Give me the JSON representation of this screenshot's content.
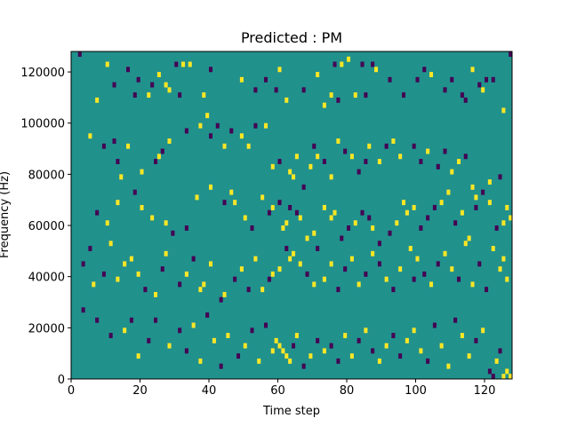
{
  "chart_data": {
    "type": "heatmap",
    "title": "Predicted : PM",
    "xlabel": "Time step",
    "ylabel": "Frequency (Hz)",
    "xlim": [
      0,
      128
    ],
    "ylim": [
      0,
      128000
    ],
    "x_ticks": [
      0,
      20,
      40,
      60,
      80,
      100,
      120
    ],
    "y_ticks": [
      0,
      20000,
      40000,
      60000,
      80000,
      100000,
      120000
    ],
    "grid": false,
    "legend": "none",
    "n_time_bins": 128,
    "n_freq_bins": 64,
    "freq_bin_width_hz": 2000,
    "value_levels": {
      "low": -1,
      "mid": 0,
      "high": 1
    },
    "colors": {
      "low": "#440154",
      "mid": "#21918c",
      "high": "#fde725"
    },
    "background_value": 0,
    "cells": [
      [
        2,
        63,
        -1
      ],
      [
        10,
        61,
        1
      ],
      [
        16,
        60,
        -1
      ],
      [
        19,
        58,
        -1
      ],
      [
        23,
        57,
        -1
      ],
      [
        25,
        59,
        1
      ],
      [
        27,
        57,
        1
      ],
      [
        30,
        61,
        -1
      ],
      [
        32,
        61,
        1
      ],
      [
        34,
        61,
        1
      ],
      [
        40,
        60,
        -1
      ],
      [
        49,
        58,
        1
      ],
      [
        56,
        58,
        -1
      ],
      [
        60,
        60,
        1
      ],
      [
        71,
        59,
        1
      ],
      [
        73,
        53,
        1
      ],
      [
        76,
        61,
        -1
      ],
      [
        78,
        61,
        1
      ],
      [
        80,
        62,
        1
      ],
      [
        84,
        61,
        -1
      ],
      [
        87,
        61,
        -1
      ],
      [
        88,
        60,
        1
      ],
      [
        92,
        58,
        -1
      ],
      [
        102,
        60,
        -1
      ],
      [
        116,
        60,
        1
      ],
      [
        120,
        58,
        -1
      ],
      [
        122,
        58,
        -1
      ],
      [
        125,
        52,
        1
      ],
      [
        127,
        63,
        -1
      ],
      [
        7,
        54,
        1
      ],
      [
        12,
        57,
        -1
      ],
      [
        18,
        55,
        -1
      ],
      [
        22,
        55,
        1
      ],
      [
        28,
        56,
        1
      ],
      [
        31,
        55,
        -1
      ],
      [
        38,
        55,
        1
      ],
      [
        53,
        56,
        -1
      ],
      [
        59,
        56,
        -1
      ],
      [
        62,
        54,
        1
      ],
      [
        67,
        56,
        -1
      ],
      [
        75,
        55,
        1
      ],
      [
        77,
        54,
        -1
      ],
      [
        82,
        55,
        1
      ],
      [
        85,
        55,
        -1
      ],
      [
        96,
        55,
        -1
      ],
      [
        100,
        58,
        -1
      ],
      [
        104,
        59,
        1
      ],
      [
        108,
        56,
        -1
      ],
      [
        110,
        58,
        -1
      ],
      [
        113,
        55,
        -1
      ],
      [
        114,
        54,
        -1
      ],
      [
        118,
        57,
        -1
      ],
      [
        119,
        56,
        1
      ],
      [
        5,
        47,
        1
      ],
      [
        9,
        45,
        -1
      ],
      [
        12,
        46,
        -1
      ],
      [
        13,
        42,
        -1
      ],
      [
        14,
        39,
        1
      ],
      [
        16,
        45,
        1
      ],
      [
        20,
        40,
        1
      ],
      [
        24,
        42,
        -1
      ],
      [
        25,
        43,
        1
      ],
      [
        26,
        44,
        -1
      ],
      [
        28,
        46,
        1
      ],
      [
        33,
        48,
        -1
      ],
      [
        37,
        49,
        1
      ],
      [
        39,
        51,
        1
      ],
      [
        40,
        47,
        -1
      ],
      [
        42,
        49,
        -1
      ],
      [
        44,
        45,
        1
      ],
      [
        46,
        48,
        -1
      ],
      [
        49,
        47,
        1
      ],
      [
        51,
        45,
        1
      ],
      [
        53,
        49,
        -1
      ],
      [
        56,
        49,
        1
      ],
      [
        58,
        41,
        1
      ],
      [
        60,
        42,
        -1
      ],
      [
        63,
        40,
        1
      ],
      [
        64,
        39,
        1
      ],
      [
        65,
        43,
        1
      ],
      [
        67,
        37,
        -1
      ],
      [
        69,
        41,
        1
      ],
      [
        70,
        45,
        -1
      ],
      [
        71,
        43,
        1
      ],
      [
        73,
        42,
        -1
      ],
      [
        75,
        39,
        1
      ],
      [
        77,
        46,
        1
      ],
      [
        79,
        44,
        -1
      ],
      [
        81,
        43,
        1
      ],
      [
        83,
        40,
        -1
      ],
      [
        85,
        42,
        -1
      ],
      [
        86,
        45,
        1
      ],
      [
        89,
        42,
        1
      ],
      [
        91,
        45,
        -1
      ],
      [
        93,
        46,
        1
      ],
      [
        95,
        43,
        1
      ],
      [
        99,
        45,
        -1
      ],
      [
        101,
        42,
        -1
      ],
      [
        103,
        44,
        1
      ],
      [
        106,
        41,
        -1
      ],
      [
        108,
        44,
        -1
      ],
      [
        110,
        40,
        1
      ],
      [
        112,
        42,
        1
      ],
      [
        114,
        43,
        -1
      ],
      [
        116,
        37,
        1
      ],
      [
        117,
        33,
        -1
      ],
      [
        121,
        38,
        1
      ],
      [
        124,
        39,
        -1
      ],
      [
        7,
        32,
        -1
      ],
      [
        10,
        30,
        1
      ],
      [
        13,
        34,
        1
      ],
      [
        18,
        36,
        -1
      ],
      [
        20,
        33,
        1
      ],
      [
        23,
        31,
        1
      ],
      [
        27,
        30,
        1
      ],
      [
        29,
        28,
        -1
      ],
      [
        33,
        29,
        -1
      ],
      [
        36,
        35,
        1
      ],
      [
        40,
        37,
        1
      ],
      [
        44,
        34,
        -1
      ],
      [
        46,
        36,
        1
      ],
      [
        47,
        34,
        1
      ],
      [
        50,
        31,
        1
      ],
      [
        52,
        29,
        -1
      ],
      [
        55,
        35,
        1
      ],
      [
        57,
        32,
        -1
      ],
      [
        58,
        33,
        1
      ],
      [
        60,
        34,
        -1
      ],
      [
        61,
        29,
        1
      ],
      [
        62,
        30,
        1
      ],
      [
        63,
        33,
        -1
      ],
      [
        65,
        32,
        -1
      ],
      [
        66,
        31,
        1
      ],
      [
        68,
        27,
        1
      ],
      [
        70,
        28,
        1
      ],
      [
        73,
        33,
        1
      ],
      [
        75,
        31,
        1
      ],
      [
        76,
        32,
        1
      ],
      [
        78,
        27,
        -1
      ],
      [
        80,
        29,
        -1
      ],
      [
        82,
        30,
        1
      ],
      [
        84,
        32,
        -1
      ],
      [
        86,
        31,
        -1
      ],
      [
        87,
        29,
        1
      ],
      [
        89,
        26,
        -1
      ],
      [
        92,
        28,
        -1
      ],
      [
        94,
        30,
        1
      ],
      [
        96,
        34,
        1
      ],
      [
        97,
        32,
        1
      ],
      [
        99,
        33,
        1
      ],
      [
        101,
        29,
        -1
      ],
      [
        103,
        31,
        -1
      ],
      [
        105,
        33,
        -1
      ],
      [
        107,
        34,
        1
      ],
      [
        109,
        36,
        1
      ],
      [
        111,
        30,
        -1
      ],
      [
        113,
        32,
        1
      ],
      [
        115,
        27,
        1
      ],
      [
        117,
        35,
        1
      ],
      [
        119,
        36,
        -1
      ],
      [
        121,
        34,
        1
      ],
      [
        123,
        29,
        -1
      ],
      [
        125,
        30,
        1
      ],
      [
        126,
        33,
        1
      ],
      [
        127,
        31,
        1
      ],
      [
        3,
        22,
        -1
      ],
      [
        5,
        25,
        -1
      ],
      [
        6,
        18,
        1
      ],
      [
        9,
        20,
        -1
      ],
      [
        11,
        26,
        1
      ],
      [
        13,
        19,
        1
      ],
      [
        15,
        22,
        1
      ],
      [
        17,
        23,
        1
      ],
      [
        19,
        20,
        1
      ],
      [
        21,
        17,
        -1
      ],
      [
        24,
        16,
        1
      ],
      [
        26,
        21,
        -1
      ],
      [
        27,
        24,
        1
      ],
      [
        31,
        18,
        -1
      ],
      [
        33,
        20,
        1
      ],
      [
        35,
        23,
        -1
      ],
      [
        37,
        17,
        1
      ],
      [
        38,
        18,
        1
      ],
      [
        40,
        22,
        1
      ],
      [
        43,
        15,
        -1
      ],
      [
        44,
        16,
        1
      ],
      [
        47,
        19,
        -1
      ],
      [
        49,
        21,
        1
      ],
      [
        51,
        17,
        -1
      ],
      [
        53,
        23,
        1
      ],
      [
        55,
        17,
        1
      ],
      [
        57,
        19,
        -1
      ],
      [
        58,
        20,
        1
      ],
      [
        60,
        21,
        1
      ],
      [
        62,
        25,
        -1
      ],
      [
        63,
        23,
        1
      ],
      [
        64,
        24,
        1
      ],
      [
        66,
        22,
        1
      ],
      [
        68,
        20,
        -1
      ],
      [
        70,
        18,
        1
      ],
      [
        71,
        25,
        -1
      ],
      [
        73,
        19,
        1
      ],
      [
        75,
        22,
        1
      ],
      [
        77,
        17,
        -1
      ],
      [
        79,
        21,
        -1
      ],
      [
        81,
        23,
        1
      ],
      [
        83,
        18,
        1
      ],
      [
        85,
        20,
        -1
      ],
      [
        87,
        24,
        1
      ],
      [
        89,
        22,
        -1
      ],
      [
        91,
        19,
        1
      ],
      [
        93,
        17,
        -1
      ],
      [
        95,
        21,
        1
      ],
      [
        98,
        25,
        1
      ],
      [
        99,
        19,
        -1
      ],
      [
        100,
        23,
        1
      ],
      [
        102,
        20,
        -1
      ],
      [
        104,
        18,
        1
      ],
      [
        106,
        22,
        -1
      ],
      [
        108,
        24,
        1
      ],
      [
        110,
        21,
        1
      ],
      [
        112,
        19,
        -1
      ],
      [
        114,
        26,
        1
      ],
      [
        116,
        18,
        1
      ],
      [
        118,
        22,
        -1
      ],
      [
        120,
        17,
        -1
      ],
      [
        122,
        25,
        1
      ],
      [
        124,
        21,
        1
      ],
      [
        125,
        23,
        1
      ],
      [
        126,
        19,
        1
      ],
      [
        3,
        13,
        -1
      ],
      [
        7,
        11,
        -1
      ],
      [
        11,
        8,
        -1
      ],
      [
        15,
        9,
        1
      ],
      [
        17,
        11,
        -1
      ],
      [
        19,
        4,
        1
      ],
      [
        22,
        7,
        -1
      ],
      [
        24,
        11,
        -1
      ],
      [
        28,
        6,
        1
      ],
      [
        31,
        9,
        -1
      ],
      [
        33,
        5,
        -1
      ],
      [
        35,
        10,
        1
      ],
      [
        37,
        3,
        1
      ],
      [
        39,
        12,
        -1
      ],
      [
        41,
        7,
        1
      ],
      [
        43,
        2,
        -1
      ],
      [
        45,
        8,
        1
      ],
      [
        48,
        4,
        -1
      ],
      [
        50,
        6,
        1
      ],
      [
        52,
        9,
        -1
      ],
      [
        54,
        3,
        1
      ],
      [
        56,
        10,
        -1
      ],
      [
        58,
        5,
        1
      ],
      [
        59,
        7,
        1
      ],
      [
        60,
        6,
        1
      ],
      [
        61,
        5,
        1
      ],
      [
        62,
        4,
        1
      ],
      [
        63,
        3,
        1
      ],
      [
        64,
        6,
        -1
      ],
      [
        65,
        8,
        1
      ],
      [
        67,
        2,
        -1
      ],
      [
        69,
        4,
        1
      ],
      [
        71,
        7,
        -1
      ],
      [
        73,
        5,
        1
      ],
      [
        75,
        6,
        -1
      ],
      [
        77,
        3,
        -1
      ],
      [
        79,
        8,
        1
      ],
      [
        81,
        4,
        1
      ],
      [
        83,
        7,
        -1
      ],
      [
        85,
        9,
        1
      ],
      [
        87,
        5,
        -1
      ],
      [
        89,
        3,
        1
      ],
      [
        91,
        6,
        1
      ],
      [
        93,
        8,
        -1
      ],
      [
        95,
        4,
        -1
      ],
      [
        97,
        7,
        1
      ],
      [
        99,
        9,
        1
      ],
      [
        101,
        5,
        1
      ],
      [
        103,
        3,
        -1
      ],
      [
        105,
        10,
        -1
      ],
      [
        107,
        6,
        1
      ],
      [
        109,
        2,
        1
      ],
      [
        111,
        11,
        -1
      ],
      [
        113,
        8,
        1
      ],
      [
        115,
        4,
        1
      ],
      [
        117,
        7,
        -1
      ],
      [
        119,
        9,
        1
      ],
      [
        121,
        1,
        -1
      ],
      [
        122,
        0,
        -1
      ],
      [
        123,
        3,
        1
      ],
      [
        124,
        5,
        -1
      ],
      [
        125,
        0,
        1
      ],
      [
        126,
        1,
        1
      ],
      [
        127,
        0,
        1
      ]
    ]
  }
}
